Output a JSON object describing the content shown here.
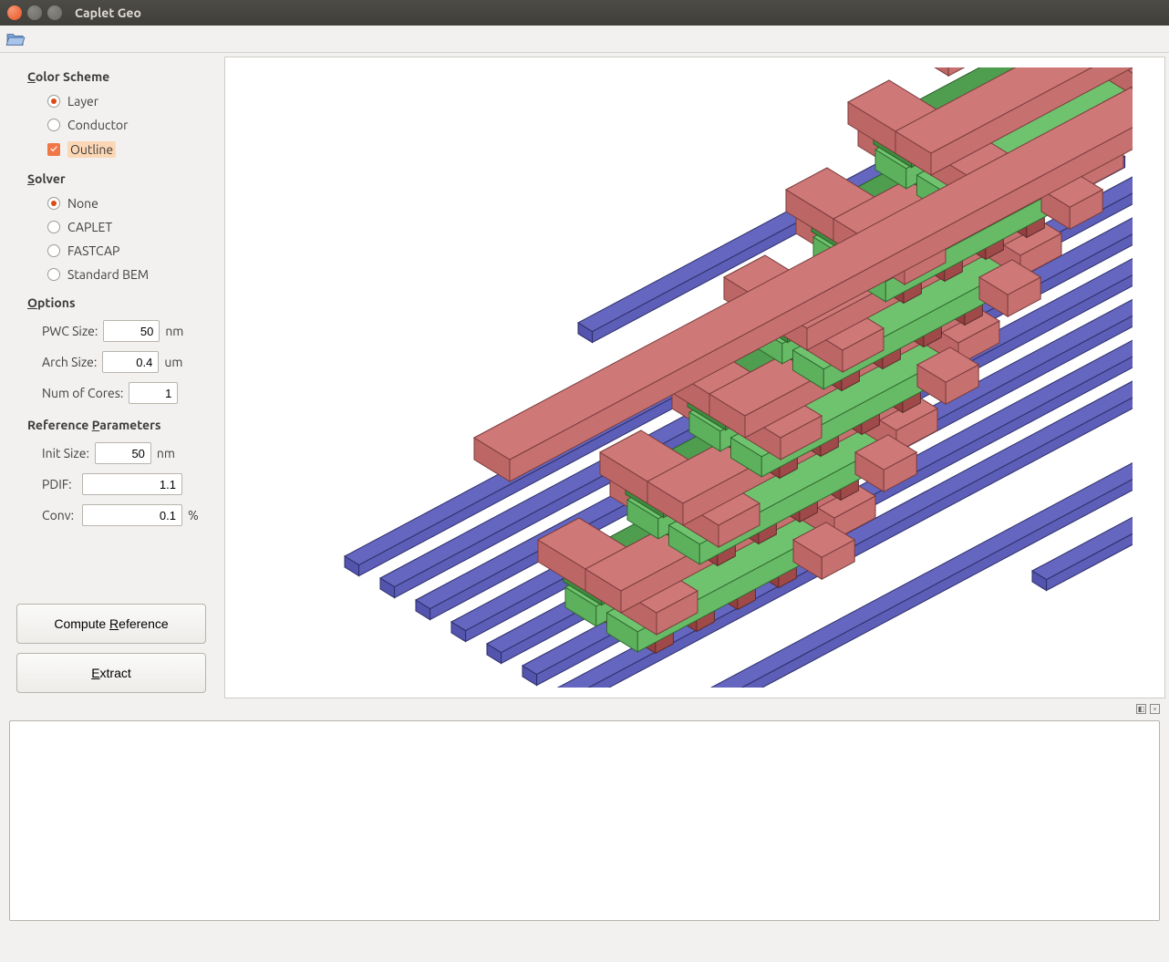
{
  "window": {
    "title": "Caplet Geo"
  },
  "sidebar": {
    "color_scheme": {
      "title": "Color Scheme",
      "layer": "Layer",
      "conductor": "Conductor",
      "outline": "Outline",
      "selected": "layer",
      "outline_checked": true
    },
    "solver": {
      "title": "Solver",
      "none": "None",
      "caplet": "CAPLET",
      "fastcap": "FASTCAP",
      "standard_bem": "Standard BEM",
      "selected": "none"
    },
    "options": {
      "title": "Options",
      "pwc_label": "PWC Size:",
      "pwc_value": "50",
      "pwc_unit": "nm",
      "arch_label": "Arch Size:",
      "arch_value": "0.4",
      "arch_unit": "um",
      "cores_label": "Num of Cores:",
      "cores_value": "1"
    },
    "ref_params": {
      "title": "Reference Parameters",
      "init_label": "Init Size:",
      "init_value": "50",
      "init_unit": "nm",
      "pdif_label": "PDIF:",
      "pdif_value": "1.1",
      "conv_label": "Conv:",
      "conv_value": "0.1",
      "conv_unit": "%"
    },
    "buttons": {
      "compute_reference": "Compute Reference",
      "extract": "Extract"
    }
  },
  "viewport": {
    "background": "#ffffff",
    "layers": [
      {
        "name": "substrate",
        "fill": "#6466bf",
        "stroke": "#2e2f6a"
      },
      {
        "name": "via_lower",
        "fill": "#a85151",
        "stroke": "#5a2c2c"
      },
      {
        "name": "metal1",
        "fill": "#6fc36f",
        "stroke": "#2f6a2f"
      },
      {
        "name": "via_mid",
        "fill": "#6fa3a8",
        "stroke": "#365a5e"
      },
      {
        "name": "metal2",
        "fill": "#4f9d4f",
        "stroke": "#2a5c2a"
      },
      {
        "name": "top",
        "fill": "#cf7878",
        "stroke": "#7a3c3c"
      }
    ]
  }
}
